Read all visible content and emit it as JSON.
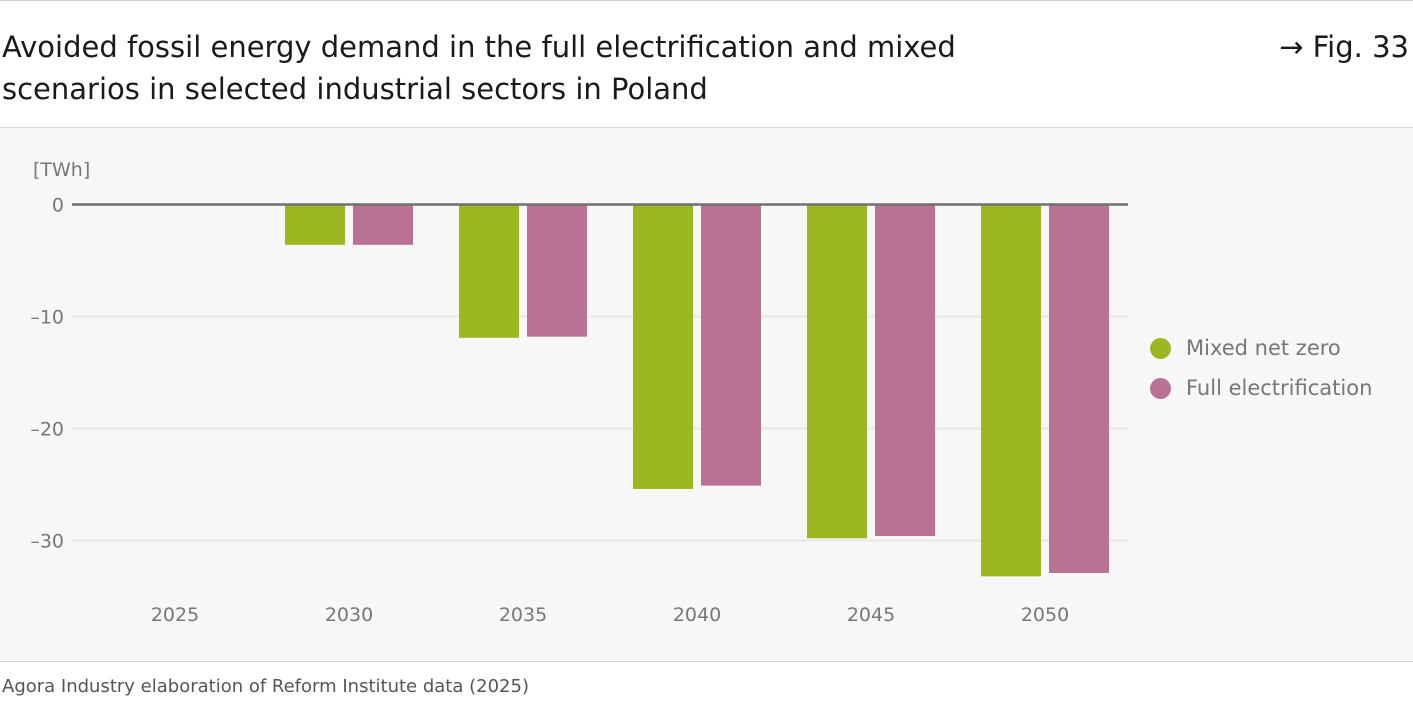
{
  "header": {
    "title": "Avoided fossil energy demand in the full electrification and mixed scenarios in selected industrial sectors in Poland",
    "fig_ref": "→ Fig. 33"
  },
  "source": "Agora Industry elaboration of Reform Institute data (2025)",
  "chart_data": {
    "type": "bar",
    "ylabel": "[TWh]",
    "ylim": [
      -35,
      0
    ],
    "yticks": [
      0,
      -10,
      -20,
      -30
    ],
    "ytick_labels": [
      "0",
      "–10",
      "–20",
      "–30"
    ],
    "grid": true,
    "legend_position": "right",
    "categories": [
      "2025",
      "2030",
      "2035",
      "2040",
      "2045",
      "2050"
    ],
    "series": [
      {
        "name": "Mixed net zero",
        "color": "#9bb722",
        "values": [
          0,
          -3.6,
          -11.9,
          -25.4,
          -29.8,
          -33.2
        ]
      },
      {
        "name": "Full electrification",
        "color": "#b97194",
        "values": [
          0,
          -3.6,
          -11.8,
          -25.1,
          -29.6,
          -32.9
        ]
      }
    ]
  }
}
